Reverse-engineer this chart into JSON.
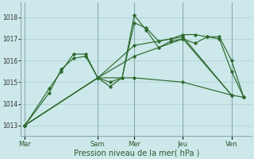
{
  "background_color": "#cce8ea",
  "grid_color": "#b0d4d6",
  "line_color": "#2d6a2d",
  "ylabel_ticks": [
    1013,
    1014,
    1015,
    1016,
    1017,
    1018
  ],
  "xlabel": "Pression niveau de la mer( hPa )",
  "x_day_labels": [
    "Mar",
    "Sam",
    "Mer",
    "Jeu",
    "Ven"
  ],
  "x_day_positions": [
    0,
    18,
    27,
    39,
    51
  ],
  "xlim": [
    -1,
    56
  ],
  "ylim": [
    1012.5,
    1018.7
  ],
  "series": [
    {
      "x": [
        0,
        6,
        9,
        12,
        15,
        18,
        21,
        24,
        27,
        30,
        33,
        36,
        39,
        42,
        45,
        48,
        51,
        54
      ],
      "y": [
        1013.0,
        1014.7,
        1015.5,
        1016.3,
        1016.3,
        1015.2,
        1014.8,
        1015.2,
        1017.75,
        1017.5,
        1016.9,
        1017.0,
        1017.2,
        1017.2,
        1017.1,
        1017.1,
        1016.0,
        1014.3
      ]
    },
    {
      "x": [
        0,
        6,
        9,
        12,
        15,
        18,
        21,
        24,
        27,
        30,
        33,
        36,
        39,
        42,
        45,
        48,
        51,
        54
      ],
      "y": [
        1013.0,
        1014.5,
        1015.6,
        1016.1,
        1016.2,
        1015.2,
        1015.0,
        1015.2,
        1018.1,
        1017.4,
        1016.6,
        1016.9,
        1017.0,
        1016.8,
        1017.1,
        1017.0,
        1015.5,
        1014.3
      ]
    },
    {
      "x": [
        0,
        18,
        27,
        39,
        51,
        54
      ],
      "y": [
        1013.0,
        1015.2,
        1015.2,
        1015.0,
        1014.4,
        1014.3
      ]
    },
    {
      "x": [
        0,
        18,
        27,
        39,
        51
      ],
      "y": [
        1013.0,
        1015.2,
        1016.2,
        1017.0,
        1014.4
      ]
    },
    {
      "x": [
        0,
        18,
        27,
        39,
        51
      ],
      "y": [
        1013.0,
        1015.2,
        1016.7,
        1017.1,
        1014.4
      ]
    }
  ]
}
